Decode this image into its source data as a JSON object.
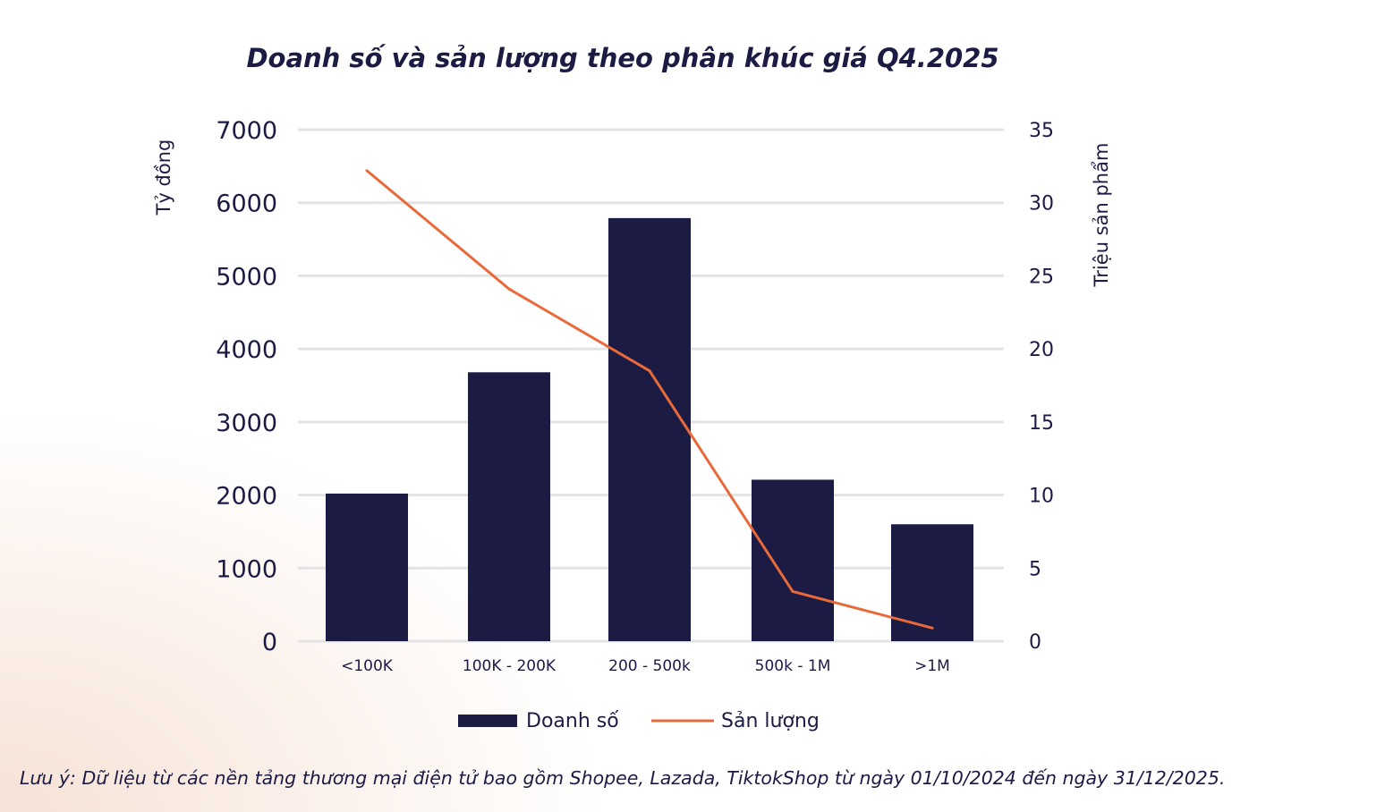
{
  "chart_data": {
    "type": "bar",
    "title": "Doanh số và sản lượng theo phân khúc giá Q4.2025",
    "categories": [
      "<100K",
      "100K - 200K",
      "200 - 500k",
      "500k - 1M",
      ">1M"
    ],
    "ylabel": "Tỷ đồng",
    "y2label": "Triệu sản phẩm",
    "ylim": [
      0,
      7000
    ],
    "y2lim": [
      0,
      35
    ],
    "yticks": [
      0,
      1000,
      2000,
      3000,
      4000,
      5000,
      6000,
      7000
    ],
    "y2ticks": [
      0,
      5,
      10,
      15,
      20,
      25,
      30,
      35
    ],
    "grid": true,
    "legend": "bottom",
    "series": [
      {
        "name": "Doanh số",
        "type": "bar",
        "axis": "left",
        "color": "#1c1b44",
        "values": [
          2020,
          3680,
          5790,
          2210,
          1600
        ]
      },
      {
        "name": "Sản lượng",
        "type": "line",
        "axis": "right",
        "color": "#e8693a",
        "values": [
          32.2,
          24.1,
          18.5,
          3.4,
          0.9
        ]
      }
    ]
  },
  "note": "Lưu ý: Dữ liệu từ các nền tảng thương mại điện tử bao gồm Shopee, Lazada, TiktokShop từ ngày 01/10/2024 đến ngày 31/12/2025."
}
